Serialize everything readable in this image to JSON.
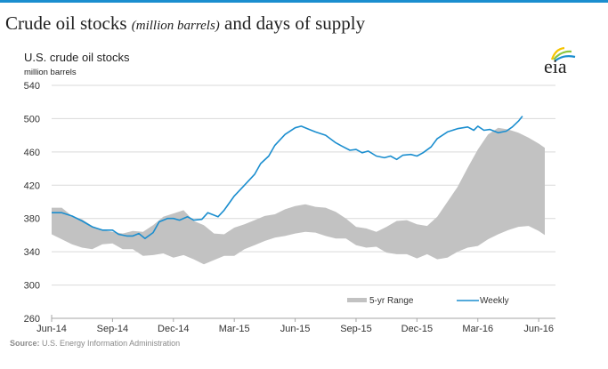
{
  "header": {
    "title_main": "Crude oil stocks",
    "title_italic": "(million barrels)",
    "title_tail": "and days of supply"
  },
  "logo": {
    "text": "eia",
    "colors": [
      "#f6c400",
      "#8cc63f",
      "#1b8ecf"
    ]
  },
  "source": {
    "label": "Source:",
    "text": "U.S. Energy Information Administration"
  },
  "colors": {
    "accent": "#1b8ecf",
    "range_fill": "#c2c2c2",
    "grid": "#d9d9d9",
    "axis": "#a6a6a6"
  },
  "chart_data": {
    "type": "line",
    "title": "U.S. crude oil stocks",
    "ylabel": "million barrels",
    "xlabel": "",
    "ylim": [
      260,
      540
    ],
    "yticks": [
      260,
      300,
      340,
      380,
      420,
      460,
      500,
      540
    ],
    "ytick_labels": [
      "260",
      "300",
      "340",
      "380",
      "420",
      "460",
      "500",
      "540"
    ],
    "x_unit": "months since Jun-14",
    "xlim": [
      0,
      24.5
    ],
    "xticks": [
      0,
      3,
      6,
      9,
      12,
      15,
      18,
      21,
      24
    ],
    "xtick_labels": [
      "Jun-14",
      "Sep-14",
      "Dec-14",
      "Mar-15",
      "Jun-15",
      "Sep-15",
      "Dec-15",
      "Mar-16",
      "Jun-16"
    ],
    "grid": true,
    "legend": {
      "position": "bottom-right",
      "entries": [
        "5-yr Range",
        "Weekly"
      ]
    },
    "series": [
      {
        "name": "5-yr Range",
        "type": "area-range",
        "x": [
          0,
          0.5,
          1,
          1.5,
          2,
          2.5,
          3,
          3.5,
          4,
          4.5,
          5,
          5.5,
          6,
          6.5,
          7,
          7.5,
          8,
          8.5,
          9,
          9.5,
          10,
          10.5,
          11,
          11.5,
          12,
          12.5,
          13,
          13.5,
          14,
          14.5,
          15,
          15.5,
          16,
          16.5,
          17,
          17.5,
          18,
          18.5,
          19,
          19.5,
          20,
          20.5,
          21,
          21.5,
          22,
          22.5,
          23,
          23.5,
          24,
          24.5
        ],
        "upper": [
          393,
          393,
          383,
          379,
          371,
          366,
          364,
          362,
          365,
          364,
          372,
          382,
          386,
          390,
          377,
          372,
          362,
          361,
          369,
          373,
          378,
          383,
          385,
          391,
          395,
          397,
          394,
          393,
          388,
          380,
          370,
          368,
          364,
          370,
          377,
          378,
          373,
          371,
          382,
          400,
          418,
          441,
          463,
          481,
          489,
          487,
          483,
          477,
          470,
          465
        ],
        "lower": [
          361,
          355,
          349,
          345,
          343,
          349,
          350,
          343,
          343,
          335,
          336,
          338,
          333,
          336,
          331,
          325,
          330,
          335,
          335,
          343,
          348,
          353,
          357,
          359,
          362,
          364,
          363,
          359,
          356,
          356,
          348,
          345,
          346,
          339,
          337,
          337,
          332,
          337,
          331,
          333,
          340,
          345,
          347,
          355,
          361,
          366,
          370,
          371,
          365,
          360
        ]
      },
      {
        "name": "Weekly",
        "type": "line",
        "x": [
          0,
          0.5,
          1,
          1.5,
          2,
          2.5,
          3,
          3.3,
          3.7,
          4,
          4.3,
          4.6,
          5,
          5.3,
          5.7,
          6,
          6.3,
          6.7,
          7,
          7.4,
          7.7,
          8.2,
          8.5,
          9,
          9.5,
          10,
          10.3,
          10.7,
          11,
          11.5,
          12,
          12.3,
          12.7,
          13,
          13.5,
          14,
          14.3,
          14.7,
          15,
          15.3,
          15.6,
          16,
          16.4,
          16.7,
          17,
          17.3,
          17.7,
          18,
          18.3,
          18.7,
          19,
          19.5,
          20,
          20.5,
          20.8,
          21,
          21.3,
          21.6,
          22,
          22.4,
          22.7,
          23,
          23.2
        ],
        "values": [
          387,
          387,
          383,
          377,
          370,
          366,
          366,
          361,
          359,
          359,
          362,
          356,
          363,
          376,
          380,
          380,
          378,
          382,
          378,
          379,
          387,
          382,
          390,
          407,
          420,
          433,
          446,
          455,
          468,
          481,
          489,
          491,
          487,
          484,
          480,
          471,
          467,
          462,
          463,
          459,
          461,
          455,
          453,
          455,
          451,
          456,
          457,
          455,
          459,
          466,
          476,
          484,
          488,
          490,
          486,
          491,
          486,
          487,
          483,
          485,
          490,
          497,
          503
        ]
      }
    ]
  }
}
